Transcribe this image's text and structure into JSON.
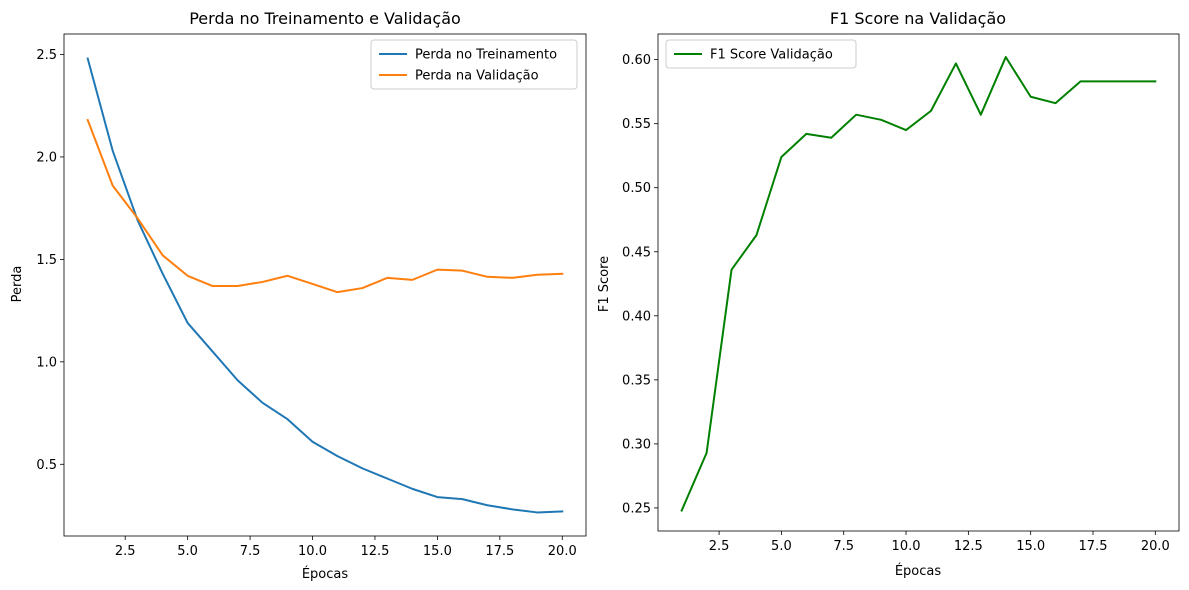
{
  "chart_data": [
    {
      "type": "line",
      "title": "Perda no Treinamento e Validação",
      "xlabel": "Épocas",
      "ylabel": "Perda",
      "xlim": [
        0.05,
        20.95
      ],
      "ylim": [
        0.15,
        2.6
      ],
      "xticks": [
        2.5,
        5.0,
        7.5,
        10.0,
        12.5,
        15.0,
        17.5,
        20.0
      ],
      "xtick_labels": [
        "2.5",
        "5.0",
        "7.5",
        "10.0",
        "12.5",
        "15.0",
        "17.5",
        "20.0"
      ],
      "yticks": [
        0.5,
        1.0,
        1.5,
        2.0,
        2.5
      ],
      "ytick_labels": [
        "0.5",
        "1.0",
        "1.5",
        "2.0",
        "2.5"
      ],
      "grid": false,
      "legend_position": "top-right",
      "x": [
        1,
        2,
        3,
        4,
        5,
        6,
        7,
        8,
        9,
        10,
        11,
        12,
        13,
        14,
        15,
        16,
        17,
        18,
        19,
        20
      ],
      "series": [
        {
          "name": "Perda no Treinamento",
          "color": "#1f77b4",
          "values": [
            2.48,
            2.03,
            1.69,
            1.43,
            1.19,
            1.05,
            0.91,
            0.8,
            0.72,
            0.61,
            0.54,
            0.48,
            0.43,
            0.38,
            0.34,
            0.33,
            0.3,
            0.28,
            0.265,
            0.27
          ]
        },
        {
          "name": "Perda na Validação",
          "color": "#ff7f0e",
          "values": [
            2.18,
            1.86,
            1.7,
            1.52,
            1.42,
            1.37,
            1.37,
            1.39,
            1.42,
            1.38,
            1.34,
            1.36,
            1.41,
            1.4,
            1.45,
            1.445,
            1.415,
            1.41,
            1.425,
            1.43
          ]
        }
      ]
    },
    {
      "type": "line",
      "title": "F1 Score na Validação",
      "xlabel": "Épocas",
      "ylabel": "F1 Score",
      "xlim": [
        0.05,
        20.95
      ],
      "ylim": [
        0.232,
        0.62
      ],
      "xticks": [
        2.5,
        5.0,
        7.5,
        10.0,
        12.5,
        15.0,
        17.5,
        20.0
      ],
      "xtick_labels": [
        "2.5",
        "5.0",
        "7.5",
        "10.0",
        "12.5",
        "15.0",
        "17.5",
        "20.0"
      ],
      "yticks": [
        0.25,
        0.3,
        0.35,
        0.4,
        0.45,
        0.5,
        0.55,
        0.6
      ],
      "ytick_labels": [
        "0.25",
        "0.30",
        "0.35",
        "0.40",
        "0.45",
        "0.50",
        "0.55",
        "0.60"
      ],
      "grid": false,
      "legend_position": "top-left",
      "x": [
        1,
        2,
        3,
        4,
        5,
        6,
        7,
        8,
        9,
        10,
        11,
        12,
        13,
        14,
        15,
        16,
        17,
        18,
        19,
        20
      ],
      "series": [
        {
          "name": "F1 Score Validação",
          "color": "#008000",
          "values": [
            0.248,
            0.293,
            0.436,
            0.463,
            0.524,
            0.542,
            0.539,
            0.557,
            0.553,
            0.545,
            0.56,
            0.597,
            0.557,
            0.602,
            0.571,
            0.566,
            0.583,
            0.583,
            0.583,
            0.583
          ]
        }
      ]
    }
  ]
}
